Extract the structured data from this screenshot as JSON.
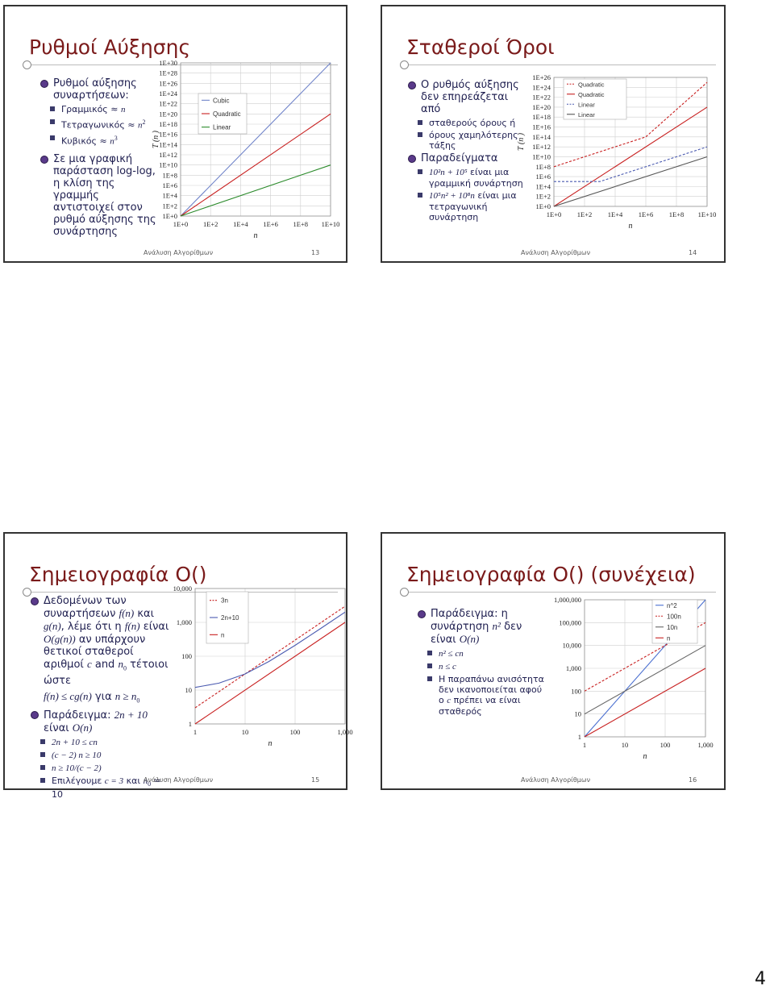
{
  "page_number": "4",
  "footer": "Ανάλυση Αλγορίθμων",
  "colors": {
    "blue": "#6f83c9",
    "green": "#2a8a2a",
    "red": "#c82020",
    "gray": "#555555"
  },
  "slide13": {
    "title": "Ρυθμοί Αύξησης",
    "num": "13",
    "b1": "Ρυθμοί αύξησης συναρτήσεων:",
    "s1_label": "Γραμμικός ≈ ",
    "s1_var": "n",
    "s2_label": "Τετραγωνικός ≈ ",
    "s2_var": "n",
    "s2_exp": "2",
    "s3_label": "Κυβικός ≈ ",
    "s3_var": "n",
    "s3_exp": "3",
    "b2": "Σε μια γραφική παράσταση log-log, η κλίση της γραμμής αντιστοιχεί στον ρυθμό αύξησης της συνάρτησης"
  },
  "slide14": {
    "title": "Σταθεροί Όροι",
    "num": "14",
    "b1": "Ο ρυθμός αύξησης δεν επηρεάζεται από",
    "s1": "σταθερούς όρους ή",
    "s2": "όρους χαμηλότερης τάξης",
    "b2": "Παραδείγματα",
    "s3_expr": "10²n + 10⁵",
    "s3_text": " είναι μια γραμμική συνάρτηση",
    "s4_expr": "10⁵n² + 10⁸n",
    "s4_text": " είναι μια τετραγωνική συνάρτηση"
  },
  "slide15": {
    "title": "Σημειογραφία O()",
    "num": "15",
    "p1a": "Δεδομένων των συναρτήσεων ",
    "p1b": "f(n)",
    "p1c": " και ",
    "p1d": "g(n)",
    "p1e": ", λέμε ότι η ",
    "p1f": "f(n)",
    "p1g": " είναι ",
    "p1h": "O(g(n))",
    "p1i": " αν υπάρχουν θετικοί σταθεροί αριθμοί ",
    "p1j": "c",
    "p1k": " and ",
    "p1l": "n",
    "p1m": "0",
    "p1n": " τέτοιοι ώστε",
    "ineq_a": "f(n) ≤ cg(n)",
    "ineq_b": " για ",
    "ineq_c": "n ≥ n",
    "ineq_sub": "0",
    "ex_a": "Παράδειγμα: ",
    "ex_b": "2n + 10",
    "ex_c": " είναι ",
    "ex_d": "O(n)",
    "s1": "2n + 10 ≤ cn",
    "s2": "(c − 2) n ≥ 10",
    "s3": "n ≥ 10/(c − 2)",
    "s4a": "Επιλέγουμε ",
    "s4b": "c = 3",
    "s4c": " και ",
    "s4d": "n",
    "s4e": "0",
    "s4f": " = 10"
  },
  "slide16": {
    "title": "Σημειογραφία O() (συνέχεια)",
    "num": "16",
    "b1a": "Παράδειγμα: η συνάρτηση ",
    "b1b": "n²",
    "b1c": " δεν είναι ",
    "b1d": "O(n)",
    "s1": "n² ≤ cn",
    "s2": "n ≤ c",
    "s3a": "Η παραπάνω ανισότητα δεν ικανοποιείται αφού ο ",
    "s3b": "c",
    "s3c": " πρέπει να είναι σταθερός"
  },
  "chart_data": [
    {
      "id": "slide13-chart",
      "type": "line",
      "xscale": "log10",
      "yscale": "log10",
      "xlabel": "n",
      "ylabel": "T (n )",
      "x_ticks": [
        "1E+0",
        "1E+2",
        "1E+4",
        "1E+6",
        "1E+8",
        "1E+10"
      ],
      "y_ticks": [
        "1E+0",
        "1E+2",
        "1E+4",
        "1E+6",
        "1E+8",
        "1E+10",
        "1E+12",
        "1E+14",
        "1E+16",
        "1E+18",
        "1E+20",
        "1E+22",
        "1E+24",
        "1E+26",
        "1E+28",
        "1E+30"
      ],
      "xlim": [
        1,
        10000000000.0
      ],
      "ylim": [
        1,
        1e+30
      ],
      "legend_position": "top-left",
      "series": [
        {
          "name": "Cubic",
          "color": "#6f83c9",
          "x": [
            1,
            10000000000.0
          ],
          "y": [
            1,
            1e+30
          ]
        },
        {
          "name": "Quadratic",
          "color": "#c82020",
          "x": [
            1,
            10000000000.0
          ],
          "y": [
            1,
            1e+20
          ]
        },
        {
          "name": "Linear",
          "color": "#2a8a2a",
          "x": [
            1,
            10000000000.0
          ],
          "y": [
            1,
            10000000000.0
          ]
        }
      ]
    },
    {
      "id": "slide14-chart",
      "type": "line",
      "xscale": "log10",
      "yscale": "log10",
      "xlabel": "n",
      "ylabel": "T (n )",
      "x_ticks": [
        "1E+0",
        "1E+2",
        "1E+4",
        "1E+6",
        "1E+8",
        "1E+10"
      ],
      "y_ticks": [
        "1E+0",
        "1E+2",
        "1E+4",
        "1E+6",
        "1E+8",
        "1E+10",
        "1E+12",
        "1E+14",
        "1E+16",
        "1E+18",
        "1E+20",
        "1E+22",
        "1E+24",
        "1E+26"
      ],
      "xlim": [
        1,
        10000000000.0
      ],
      "ylim": [
        1,
        1e+26
      ],
      "legend_position": "top-left",
      "series": [
        {
          "name": "Quadratic",
          "color": "#c82020",
          "dash": true,
          "x": [
            1,
            1000.0,
            1000000.0,
            10000000000.0
          ],
          "y": [
            100000000.0,
            100000000000.0,
            100000000000000.0,
            1e+25
          ]
        },
        {
          "name": "Quadratic",
          "color": "#c82020",
          "x": [
            1,
            10000000000.0
          ],
          "y": [
            1,
            1e+20
          ]
        },
        {
          "name": "Linear",
          "color": "#4a5ab0",
          "dash": true,
          "x": [
            1,
            1000.0,
            100000.0,
            10000000000.0
          ],
          "y": [
            100000.0,
            100000.0,
            10000000.0,
            1000000000000.0
          ]
        },
        {
          "name": "Linear",
          "color": "#555555",
          "x": [
            1,
            10000000000.0
          ],
          "y": [
            1,
            10000000000.0
          ]
        }
      ]
    },
    {
      "id": "slide15-chart",
      "type": "line",
      "xscale": "log10",
      "yscale": "log10",
      "xlabel": "n",
      "x_ticks": [
        "1",
        "10",
        "100",
        "1,000"
      ],
      "y_ticks": [
        "1",
        "10",
        "100",
        "1,000",
        "10,000"
      ],
      "xlim": [
        1,
        1000
      ],
      "ylim": [
        1,
        10000
      ],
      "legend_position": "top-left",
      "series": [
        {
          "name": "3n",
          "color": "#c82020",
          "dash": true,
          "x": [
            1,
            1000
          ],
          "y": [
            3,
            3000
          ]
        },
        {
          "name": "2n+10",
          "color": "#4a5ab0",
          "x": [
            1,
            3,
            10,
            30,
            100,
            300,
            1000
          ],
          "y": [
            12,
            16,
            30,
            70,
            210,
            610,
            2010
          ]
        },
        {
          "name": "n",
          "color": "#c82020",
          "x": [
            1,
            1000
          ],
          "y": [
            1,
            1000
          ]
        }
      ]
    },
    {
      "id": "slide16-chart",
      "type": "line",
      "xscale": "log10",
      "yscale": "log10",
      "xlabel": "n",
      "x_ticks": [
        "1",
        "10",
        "100",
        "1,000"
      ],
      "y_ticks": [
        "1",
        "10",
        "100",
        "1,000",
        "10,000",
        "100,000",
        "1,000,000"
      ],
      "xlim": [
        1,
        1000
      ],
      "ylim": [
        1,
        1000000
      ],
      "legend_position": "top-right",
      "series": [
        {
          "name": "n^2",
          "color": "#4a6fd0",
          "x": [
            1,
            1000
          ],
          "y": [
            1,
            1000000
          ]
        },
        {
          "name": "100n",
          "color": "#c82020",
          "dash": true,
          "x": [
            1,
            1000
          ],
          "y": [
            100,
            100000
          ]
        },
        {
          "name": "10n",
          "color": "#666666",
          "x": [
            1,
            1000
          ],
          "y": [
            10,
            10000
          ]
        },
        {
          "name": "n",
          "color": "#c82020",
          "x": [
            1,
            1000
          ],
          "y": [
            1,
            1000
          ]
        }
      ]
    }
  ]
}
